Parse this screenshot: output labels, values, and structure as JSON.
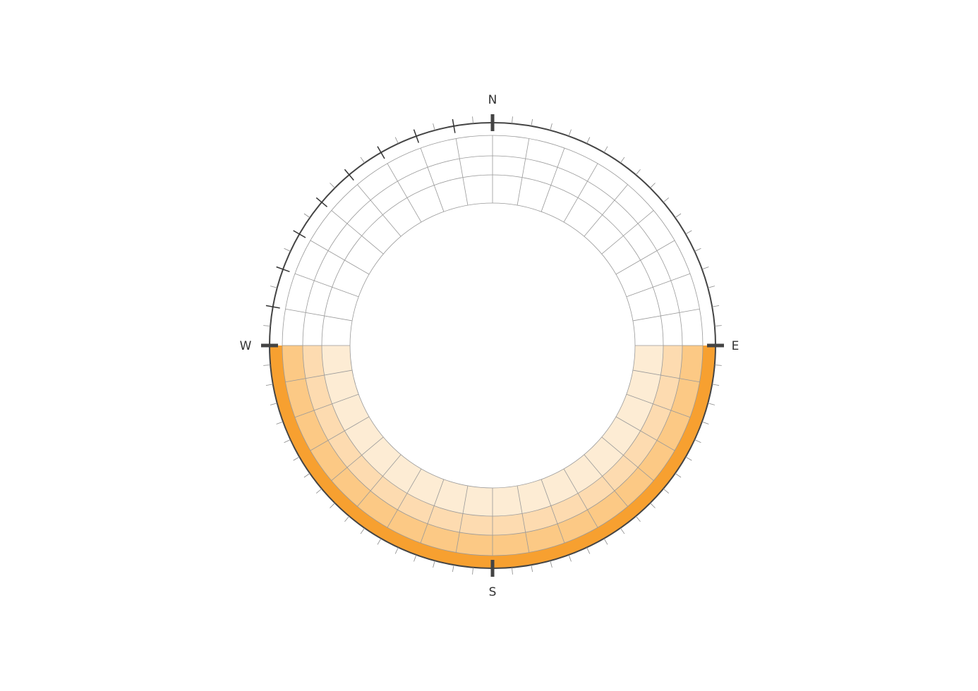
{
  "compass": {
    "north": "N",
    "east": "E",
    "south": "S",
    "west": "W"
  }
}
